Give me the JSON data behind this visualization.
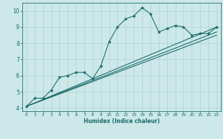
{
  "xlabel": "Humidex (Indice chaleur)",
  "ylabel": "",
  "bg_color": "#cce8e8",
  "grid_color": "#b0d0d0",
  "line_color": "#1a6b6b",
  "xlim": [
    -0.5,
    23.5
  ],
  "ylim": [
    3.8,
    10.5
  ],
  "xticks": [
    0,
    1,
    2,
    3,
    4,
    5,
    6,
    7,
    8,
    9,
    10,
    11,
    12,
    13,
    14,
    15,
    16,
    17,
    18,
    19,
    20,
    21,
    22,
    23
  ],
  "yticks": [
    4,
    5,
    6,
    7,
    8,
    9,
    10
  ],
  "line1_x": [
    0,
    1,
    2,
    3,
    4,
    5,
    6,
    7,
    8,
    9,
    10,
    11,
    12,
    13,
    14,
    15,
    16,
    17,
    18,
    19,
    20,
    21,
    22,
    23
  ],
  "line1_y": [
    4.1,
    4.6,
    4.6,
    5.1,
    5.9,
    6.0,
    6.2,
    6.2,
    5.8,
    6.6,
    8.1,
    9.0,
    9.5,
    9.7,
    10.2,
    9.8,
    8.7,
    8.9,
    9.1,
    9.0,
    8.5,
    8.6,
    8.6,
    9.0
  ],
  "line2_x": [
    0,
    23
  ],
  "line2_y": [
    4.1,
    9.0
  ],
  "line3_x": [
    0,
    23
  ],
  "line3_y": [
    4.1,
    8.7
  ],
  "line4_x": [
    0,
    23
  ],
  "line4_y": [
    4.1,
    8.5
  ]
}
